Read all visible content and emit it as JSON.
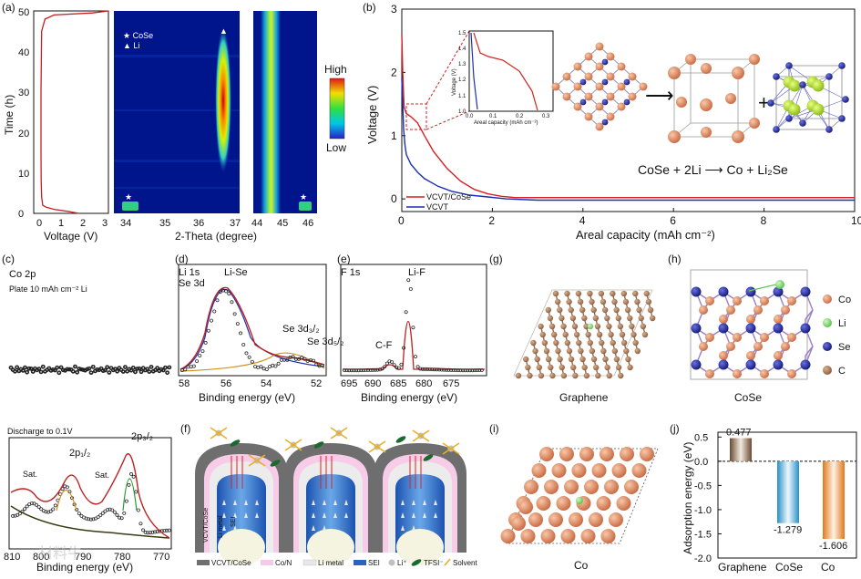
{
  "panels": {
    "a": {
      "label": "(a)",
      "time_axis_label": "Time (h)",
      "voltage_axis_label": "Voltage (V)",
      "theta_axis_label": "2-Theta (degree)",
      "legend_cose": "★ CoSe",
      "legend_li": "▲ Li",
      "colorbar_high": "High",
      "colorbar_low": "Low",
      "time_ticks": [
        "0",
        "10",
        "20",
        "30",
        "40",
        "50"
      ],
      "voltage_ticks": [
        "0",
        "1",
        "2",
        "3"
      ],
      "theta_ticks_left": [
        "34",
        "35",
        "36",
        "37"
      ],
      "theta_ticks_right": [
        "44",
        "45",
        "46"
      ]
    },
    "b": {
      "label": "(b)",
      "y_label": "Voltage (V)",
      "x_label": "Areal capacity (mAh cm⁻²)",
      "legend": [
        "VCVT/CoSe",
        "VCVT"
      ],
      "inset_y_label": "Voltage (V)",
      "inset_x_label": "Areal capacity (mAh cm⁻²)",
      "inset_y_ticks": [
        "1.0",
        "1.1",
        "1.2",
        "1.3",
        "1.4",
        "1.5"
      ],
      "inset_x_ticks": [
        "0.0",
        "0.1",
        "0.2",
        "0.3"
      ],
      "equation": "CoSe + 2Li ⟶ Co + Li₂Se"
    },
    "c": {
      "label": "(c)",
      "title": "Co 2p",
      "subtitle_top": "Plate 10 mAh cm⁻² Li",
      "subtitle_bottom": "Discharge to 0.1V",
      "peak_labels": [
        "Sat.",
        "2p₁/₂",
        "Sat.",
        "2p₃/₂"
      ]
    },
    "d": {
      "label": "(d)",
      "title_1": "Li 1s",
      "title_2": "Se 3d",
      "peak_labels": [
        "Li-Se",
        "Se 3d₃/₂",
        "Se 3d₅/₂"
      ]
    },
    "e": {
      "label": "(e)",
      "title": "F 1s",
      "peak_labels": [
        "Li-F",
        "C-F"
      ]
    },
    "f": {
      "label": "(f)",
      "side_labels": [
        "VCVT/CoSe",
        "Li metal",
        "SEI"
      ],
      "legend": [
        "VCVT/CoSe",
        "Co/N",
        "Li metal",
        "SEI",
        "Li⁺",
        "TFSI⁻",
        "Solvent"
      ]
    },
    "g": {
      "label": "(g)",
      "caption": "Graphene"
    },
    "h": {
      "label": "(h)",
      "caption": "CoSe",
      "legend": [
        "Co",
        "Li",
        "Se",
        "C"
      ]
    },
    "i": {
      "label": "(i)",
      "caption": "Co"
    },
    "j": {
      "label": "(j)",
      "y_label": "Adsorption energy (eV)"
    },
    "binding_energy_label": "Binding energy (eV)",
    "watermark": "材料牛"
  },
  "chart_data": [
    {
      "id": "b",
      "type": "line",
      "title": "",
      "xlabel": "Areal capacity (mAh cm⁻²)",
      "ylabel": "Voltage (V)",
      "xlim": [
        0,
        10
      ],
      "ylim": [
        -0.2,
        3
      ],
      "xticks": [
        0,
        2,
        4,
        6,
        8,
        10
      ],
      "yticks": [
        0,
        1,
        2,
        3
      ],
      "series": [
        {
          "name": "VCVT/CoSe",
          "color": "#d42020",
          "x": [
            0,
            0.02,
            0.05,
            0.1,
            0.2,
            0.35,
            0.5,
            0.7,
            1.0,
            1.3,
            1.6,
            1.9,
            2.2,
            2.5,
            3,
            5,
            8,
            10
          ],
          "y": [
            2.6,
            2.0,
            1.45,
            1.35,
            1.3,
            1.2,
            1.0,
            0.75,
            0.48,
            0.28,
            0.15,
            0.08,
            0.04,
            0.02,
            0.02,
            0.02,
            0.02,
            0.02
          ]
        },
        {
          "name": "VCVT",
          "color": "#1a2fb8",
          "x": [
            0,
            0.02,
            0.04,
            0.07,
            0.1,
            0.2,
            0.35,
            0.5,
            0.8,
            1.1,
            1.5,
            1.9,
            2.3,
            3,
            5,
            8,
            10
          ],
          "y": [
            1.9,
            1.5,
            1.1,
            0.85,
            0.7,
            0.55,
            0.42,
            0.32,
            0.2,
            0.12,
            0.06,
            0.03,
            0.0,
            -0.02,
            -0.02,
            -0.02,
            -0.02
          ]
        }
      ]
    },
    {
      "id": "j",
      "type": "bar",
      "ylabel": "Adsorption energy (eV)",
      "ylim": [
        -2.0,
        0.6
      ],
      "yticks": [
        -2.0,
        -1.5,
        -1.0,
        -0.5,
        0.0,
        0.5
      ],
      "ytick_labels": [
        "-2.0",
        "-1.5",
        "-1.0",
        "-0.5",
        "0.0",
        "0.5"
      ],
      "categories": [
        "Graphene",
        "CoSe",
        "Co"
      ],
      "values": [
        0.477,
        -1.279,
        -1.606
      ],
      "value_labels": [
        "0.477",
        "-1.279",
        "-1.606"
      ],
      "colors": [
        "#8a6a52",
        "#3aa6d4",
        "#e8922c"
      ]
    },
    {
      "id": "a_voltage",
      "type": "line",
      "xlabel": "Voltage (V)",
      "ylabel": "Time (h)",
      "xlim": [
        -0.3,
        3
      ],
      "ylim": [
        0,
        50
      ],
      "series": [
        {
          "name": "voltage",
          "color": "#c82020",
          "x": [
            1.7,
            1.2,
            0.6,
            0.25,
            0.1,
            0.05,
            0.03,
            0.02,
            0.02,
            0.05,
            0.2,
            0.6,
            2.3,
            3
          ],
          "y": [
            0,
            0.5,
            1,
            1.5,
            2,
            4,
            8,
            15,
            30,
            45,
            48,
            49,
            49.5,
            50
          ]
        }
      ]
    }
  ]
}
